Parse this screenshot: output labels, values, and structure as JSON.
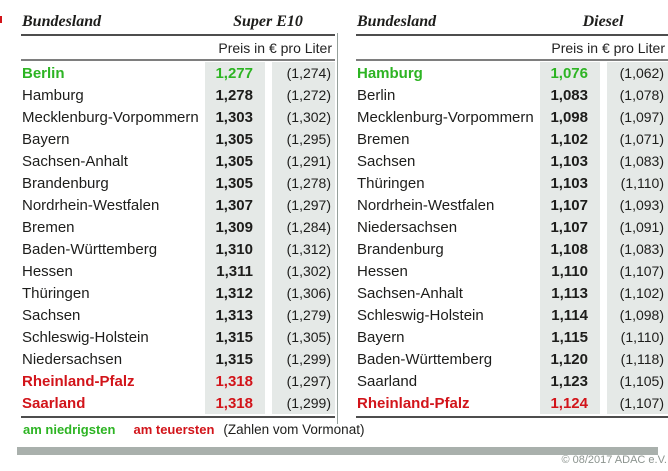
{
  "chart_data": [
    {
      "type": "table",
      "title": "Super E10",
      "region_header": "Bundesland",
      "unit_header": "Preis in € pro Liter",
      "rows": [
        {
          "name": "Berlin",
          "value": "1,277",
          "prev": "(1,274)",
          "highlight": "green"
        },
        {
          "name": "Hamburg",
          "value": "1,278",
          "prev": "(1,272)",
          "highlight": null
        },
        {
          "name": "Mecklenburg-Vorpommern",
          "value": "1,303",
          "prev": "(1,302)",
          "highlight": null
        },
        {
          "name": "Bayern",
          "value": "1,305",
          "prev": "(1,295)",
          "highlight": null
        },
        {
          "name": "Sachsen-Anhalt",
          "value": "1,305",
          "prev": "(1,291)",
          "highlight": null
        },
        {
          "name": "Brandenburg",
          "value": "1,305",
          "prev": "(1,278)",
          "highlight": null
        },
        {
          "name": "Nordrhein-Westfalen",
          "value": "1,307",
          "prev": "(1,297)",
          "highlight": null
        },
        {
          "name": "Bremen",
          "value": "1,309",
          "prev": "(1,284)",
          "highlight": null
        },
        {
          "name": "Baden-Württemberg",
          "value": "1,310",
          "prev": "(1,312)",
          "highlight": null
        },
        {
          "name": "Hessen",
          "value": "1,311",
          "prev": "(1,302)",
          "highlight": null
        },
        {
          "name": "Thüringen",
          "value": "1,312",
          "prev": "(1,306)",
          "highlight": null
        },
        {
          "name": "Sachsen",
          "value": "1,313",
          "prev": "(1,279)",
          "highlight": null
        },
        {
          "name": "Schleswig-Holstein",
          "value": "1,315",
          "prev": "(1,305)",
          "highlight": null
        },
        {
          "name": "Niedersachsen",
          "value": "1,315",
          "prev": "(1,299)",
          "highlight": null
        },
        {
          "name": "Rheinland-Pfalz",
          "value": "1,318",
          "prev": "(1,297)",
          "highlight": "red"
        },
        {
          "name": "Saarland",
          "value": "1,318",
          "prev": "(1,299)",
          "highlight": "red"
        }
      ]
    },
    {
      "type": "table",
      "title": "Diesel",
      "region_header": "Bundesland",
      "unit_header": "Preis in € pro Liter",
      "rows": [
        {
          "name": "Hamburg",
          "value": "1,076",
          "prev": "(1,062)",
          "highlight": "green"
        },
        {
          "name": "Berlin",
          "value": "1,083",
          "prev": "(1,078)",
          "highlight": null
        },
        {
          "name": "Mecklenburg-Vorpommern",
          "value": "1,098",
          "prev": "(1,097)",
          "highlight": null
        },
        {
          "name": "Bremen",
          "value": "1,102",
          "prev": "(1,071)",
          "highlight": null
        },
        {
          "name": "Sachsen",
          "value": "1,103",
          "prev": "(1,083)",
          "highlight": null
        },
        {
          "name": "Thüringen",
          "value": "1,103",
          "prev": "(1,110)",
          "highlight": null
        },
        {
          "name": "Nordrhein-Westfalen",
          "value": "1,107",
          "prev": "(1,093)",
          "highlight": null
        },
        {
          "name": "Niedersachsen",
          "value": "1,107",
          "prev": "(1,091)",
          "highlight": null
        },
        {
          "name": "Brandenburg",
          "value": "1,108",
          "prev": "(1,083)",
          "highlight": null
        },
        {
          "name": "Hessen",
          "value": "1,110",
          "prev": "(1,107)",
          "highlight": null
        },
        {
          "name": "Sachsen-Anhalt",
          "value": "1,113",
          "prev": "(1,102)",
          "highlight": null
        },
        {
          "name": "Schleswig-Holstein",
          "value": "1,114",
          "prev": "(1,098)",
          "highlight": null
        },
        {
          "name": "Bayern",
          "value": "1,115",
          "prev": "(1,110)",
          "highlight": null
        },
        {
          "name": "Baden-Württemberg",
          "value": "1,120",
          "prev": "(1,118)",
          "highlight": null
        },
        {
          "name": "Saarland",
          "value": "1,123",
          "prev": "(1,105)",
          "highlight": null
        },
        {
          "name": "Rheinland-Pfalz",
          "value": "1,124",
          "prev": "(1,107)",
          "highlight": "red"
        }
      ]
    }
  ],
  "legend": {
    "lowest": "am niedrigsten",
    "highest": "am teuersten",
    "note": "(Zahlen vom Vormonat)"
  },
  "copyright": "© 08/2017 ADAC e.V.",
  "colors": {
    "green": "#2db423",
    "red": "#d2141a",
    "cell_bg": "#e5e9e7",
    "bar": "#a9b0ac"
  }
}
